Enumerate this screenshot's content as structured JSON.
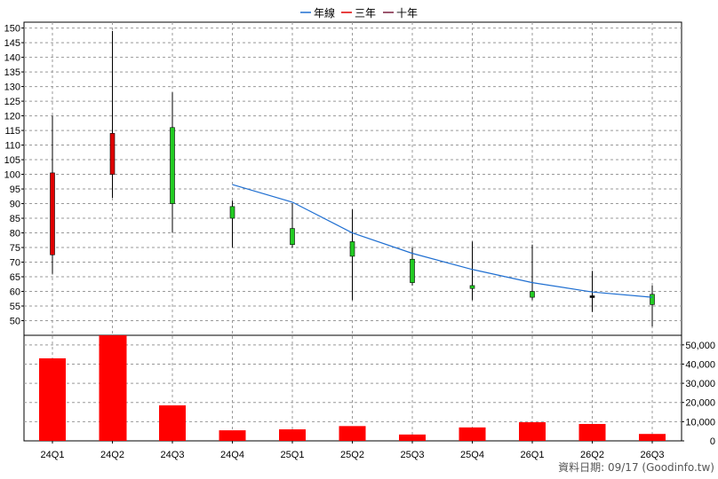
{
  "legend": [
    {
      "label": "年線",
      "color": "#1f6fd1"
    },
    {
      "label": "三年",
      "color": "#e00000"
    },
    {
      "label": "十年",
      "color": "#7a1f3d"
    }
  ],
  "footer": "資料日期: 09/17  (Goodinfo.tw)",
  "chart_data": {
    "type": "candlestick+bar",
    "categories": [
      "24Q1",
      "24Q2",
      "24Q3",
      "24Q4",
      "25Q1",
      "25Q2",
      "25Q3",
      "25Q4",
      "26Q1",
      "26Q2",
      "26Q3"
    ],
    "price": {
      "ylim": [
        45,
        152
      ],
      "ticks": [
        50,
        55,
        60,
        65,
        70,
        75,
        80,
        85,
        90,
        95,
        100,
        105,
        110,
        115,
        120,
        125,
        130,
        135,
        140,
        145,
        150
      ],
      "candles": [
        {
          "open": 72.5,
          "close": 100.5,
          "high": 120,
          "low": 66,
          "color": "red"
        },
        {
          "open": 100,
          "close": 114,
          "high": 149,
          "low": 92,
          "color": "red"
        },
        {
          "open": 116,
          "close": 90,
          "high": 128,
          "low": 80,
          "color": "green"
        },
        {
          "open": 89,
          "close": 85,
          "high": 91,
          "low": 75,
          "color": "green"
        },
        {
          "open": 81.5,
          "close": 76,
          "high": 90,
          "low": 75,
          "color": "green"
        },
        {
          "open": 77,
          "close": 72,
          "high": 88,
          "low": 57,
          "color": "green"
        },
        {
          "open": 71,
          "close": 63,
          "high": 75,
          "low": 62,
          "color": "green"
        },
        {
          "open": 62,
          "close": 61,
          "high": 77,
          "low": 57,
          "color": "green"
        },
        {
          "open": 60,
          "close": 58,
          "high": 76,
          "low": 57,
          "color": "green"
        },
        {
          "open": 58.5,
          "close": 58,
          "high": 67,
          "low": 53,
          "color": "black"
        },
        {
          "open": 59,
          "close": 55.5,
          "high": 62,
          "low": 48,
          "color": "green"
        }
      ],
      "moving_average": [
        null,
        null,
        null,
        96.5,
        90.5,
        80,
        73,
        67.5,
        63,
        59.8,
        58
      ]
    },
    "volume": {
      "ylim": [
        0,
        55000
      ],
      "ticks": [
        "0",
        "10,000",
        "20,000",
        "30,000",
        "40,000",
        "50,000"
      ],
      "tick_values": [
        0,
        10000,
        20000,
        30000,
        40000,
        50000
      ],
      "values": [
        43000,
        55000,
        18500,
        5500,
        6000,
        7700,
        3300,
        7000,
        9700,
        8800,
        3600
      ]
    },
    "grid": true
  }
}
